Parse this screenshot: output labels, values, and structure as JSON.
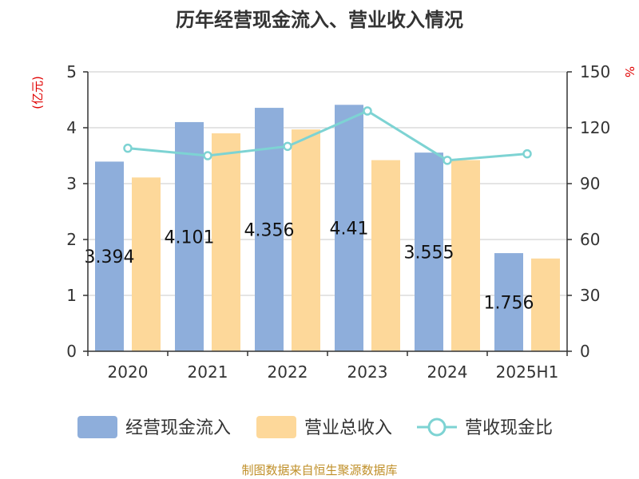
{
  "title": "历年经营现金流入、营业收入情况",
  "source": "制图数据来自恒生聚源数据库",
  "y_left_unit": "(亿元)",
  "y_right_unit": "%",
  "chart_data": {
    "type": "bar",
    "categories": [
      "2020",
      "2021",
      "2022",
      "2023",
      "2024",
      "2025H1"
    ],
    "series": [
      {
        "name": "经营现金流入",
        "type": "bar",
        "axis": "left",
        "color": "#8eaedb",
        "values": [
          3.394,
          4.101,
          4.356,
          4.41,
          3.555,
          1.756
        ],
        "labels": [
          "3.394",
          "4.101",
          "4.356",
          "4.41",
          "3.555",
          "1.756"
        ]
      },
      {
        "name": "营业总收入",
        "type": "bar",
        "axis": "left",
        "color": "#fdd89a",
        "values": [
          3.11,
          3.9,
          3.97,
          3.42,
          3.42,
          1.66
        ]
      },
      {
        "name": "营收现金比",
        "type": "line",
        "axis": "right",
        "color": "#7dd3d3",
        "values": [
          109,
          105,
          110,
          129,
          102.5,
          106
        ]
      }
    ],
    "y_left": {
      "min": 0,
      "max": 5,
      "ticks": [
        "0",
        "1",
        "2",
        "3",
        "4",
        "5"
      ]
    },
    "y_right": {
      "min": 0,
      "max": 150,
      "ticks": [
        "0",
        "30",
        "60",
        "90",
        "120",
        "150"
      ]
    },
    "grid": true,
    "legend_position": "bottom"
  }
}
